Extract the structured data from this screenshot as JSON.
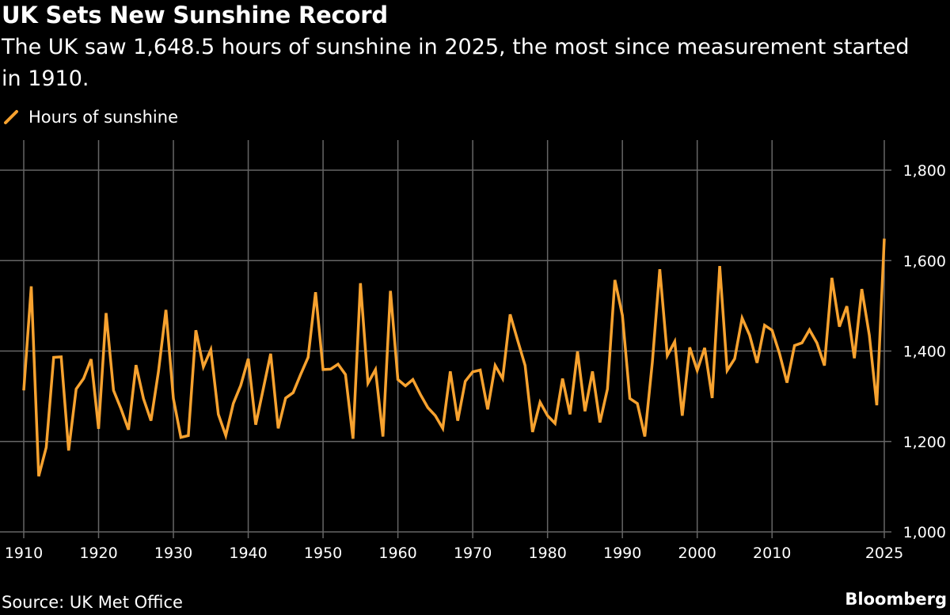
{
  "title": "UK Sets New Sunshine Record",
  "subtitle": "The UK saw 1,648.5 hours of sunshine in 2025, the most since measurement started in 1910.",
  "source": "Source: UK Met Office",
  "brand": "Bloomberg",
  "colors": {
    "background": "#000000",
    "line": "#F7A22F",
    "grid": "#666666",
    "text": "#FFFFFF"
  },
  "chart_data": {
    "type": "line",
    "title": "UK Sets New Sunshine Record",
    "xlabel": "",
    "ylabel": "",
    "xlim": [
      1910,
      2025
    ],
    "ylim": [
      1000,
      1800
    ],
    "grid": true,
    "y_axis_side": "right",
    "legend": "top-left",
    "x_ticks": [
      1910,
      1920,
      1930,
      1940,
      1950,
      1960,
      1970,
      1980,
      1990,
      2000,
      2010,
      2025
    ],
    "x_tick_labels": [
      "1910",
      "1920",
      "1930",
      "1940",
      "1950",
      "1960",
      "1970",
      "1980",
      "1990",
      "2000",
      "2010",
      "2025"
    ],
    "y_ticks": [
      1000,
      1200,
      1400,
      1600,
      1800
    ],
    "y_tick_labels": [
      "1,000",
      "1,200",
      "1,400",
      "1,600",
      "1,800"
    ],
    "series": [
      {
        "name": "Hours of sunshine",
        "x_start": 1910,
        "values": [
          1313,
          1543,
          1123,
          1187,
          1386,
          1387,
          1180,
          1316,
          1339,
          1382,
          1228,
          1484,
          1313,
          1272,
          1226,
          1369,
          1295,
          1246,
          1354,
          1491,
          1295,
          1209,
          1213,
          1446,
          1365,
          1403,
          1260,
          1213,
          1284,
          1324,
          1383,
          1237,
          1316,
          1394,
          1229,
          1296,
          1308,
          1348,
          1386,
          1530,
          1359,
          1360,
          1371,
          1348,
          1206,
          1550,
          1329,
          1359,
          1211,
          1533,
          1337,
          1323,
          1337,
          1304,
          1275,
          1257,
          1229,
          1355,
          1246,
          1333,
          1354,
          1358,
          1271,
          1368,
          1339,
          1481,
          1424,
          1368,
          1221,
          1287,
          1257,
          1240,
          1339,
          1260,
          1399,
          1267,
          1355,
          1242,
          1316,
          1557,
          1479,
          1295,
          1284,
          1211,
          1375,
          1581,
          1390,
          1421,
          1257,
          1408,
          1357,
          1407,
          1296,
          1588,
          1357,
          1383,
          1473,
          1435,
          1374,
          1457,
          1446,
          1394,
          1330,
          1412,
          1418,
          1447,
          1418,
          1368,
          1562,
          1454,
          1499,
          1384,
          1537,
          1435,
          1280,
          1648.5
        ]
      }
    ]
  }
}
